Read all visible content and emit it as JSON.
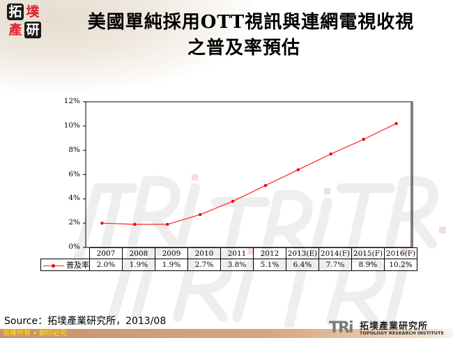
{
  "header": {
    "logo_chars": [
      "拓",
      "墣",
      "產",
      "研"
    ],
    "title_line1": "美國單純採用OTT視訊與連網電視收視",
    "title_line2": "之普及率預估"
  },
  "chart_data": {
    "type": "line",
    "title": "美國單純採用OTT視訊與連網電視收視之普及率預估",
    "xlabel": "",
    "ylabel": "",
    "categories": [
      "2007",
      "2008",
      "2009",
      "2010",
      "2011",
      "2012",
      "2013(E)",
      "2014(F)",
      "2015(F)",
      "2016(F)"
    ],
    "series": [
      {
        "name": "普及率",
        "color": "#ff0000",
        "values": [
          2.0,
          1.9,
          1.9,
          2.7,
          3.8,
          5.1,
          6.4,
          7.7,
          8.9,
          10.2
        ]
      }
    ],
    "value_labels": [
      "2.0%",
      "1.9%",
      "1.9%",
      "2.7%",
      "3.8%",
      "5.1%",
      "6.4%",
      "7.7%",
      "8.9%",
      "10.2%"
    ],
    "ylim": [
      0,
      12
    ],
    "y_ticks": [
      "0%",
      "2%",
      "4%",
      "6%",
      "8%",
      "10%",
      "12%"
    ],
    "grid": false,
    "legend_position": "data-table"
  },
  "source": "Source：拓墣產業研究所，2013/08",
  "footer": {
    "copyright": "版權所有 • 翻印必究",
    "org_mark": "TRi",
    "org_name_cn": "拓墣產業研究所",
    "org_name_en": "TOPOLOGY RESEARCH INSTITUTE"
  }
}
